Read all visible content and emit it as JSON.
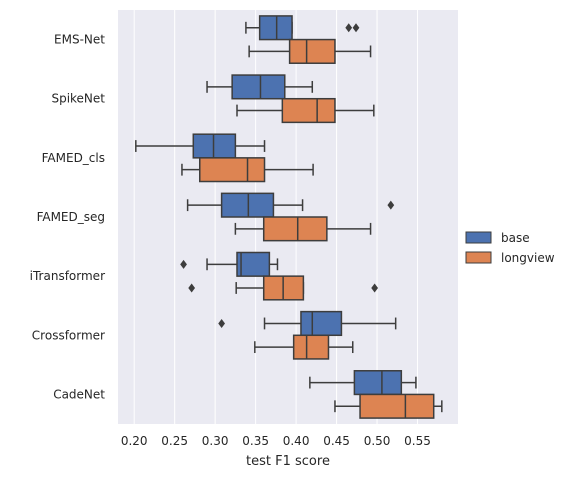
{
  "chart_data": {
    "type": "box",
    "orientation": "horizontal",
    "xlabel": "test F1 score",
    "ylabel": "",
    "xlim": [
      0.18,
      0.6
    ],
    "xticks": [
      "0.20",
      "0.25",
      "0.30",
      "0.35",
      "0.40",
      "0.45",
      "0.50",
      "0.55"
    ],
    "xtick_values": [
      0.2,
      0.25,
      0.3,
      0.35,
      0.4,
      0.45,
      0.5,
      0.55
    ],
    "grid": true,
    "legend_position": "right",
    "categories": [
      "EMS-Net",
      "SpikeNet",
      "FAMED_cls",
      "FAMED_seg",
      "iTransformer",
      "Crossformer",
      "CadeNet"
    ],
    "series": [
      {
        "name": "base",
        "color": "#4c72b0",
        "boxes": [
          {
            "whislo": 0.338,
            "q1": 0.355,
            "med": 0.376,
            "q3": 0.395,
            "whishi": 0.395,
            "fliers": [
              0.465,
              0.474
            ]
          },
          {
            "whislo": 0.29,
            "q1": 0.321,
            "med": 0.356,
            "q3": 0.386,
            "whishi": 0.42,
            "fliers": []
          },
          {
            "whislo": 0.202,
            "q1": 0.273,
            "med": 0.298,
            "q3": 0.325,
            "whishi": 0.361,
            "fliers": []
          },
          {
            "whislo": 0.266,
            "q1": 0.308,
            "med": 0.341,
            "q3": 0.372,
            "whishi": 0.408,
            "fliers": [
              0.517
            ]
          },
          {
            "whislo": 0.29,
            "q1": 0.327,
            "med": 0.332,
            "q3": 0.367,
            "whishi": 0.377,
            "fliers": [
              0.261
            ]
          },
          {
            "whislo": 0.361,
            "q1": 0.406,
            "med": 0.42,
            "q3": 0.456,
            "whishi": 0.523,
            "fliers": [
              0.308
            ]
          },
          {
            "whislo": 0.417,
            "q1": 0.472,
            "med": 0.506,
            "q3": 0.53,
            "whishi": 0.548,
            "fliers": []
          }
        ]
      },
      {
        "name": "longview",
        "color": "#dd8452",
        "boxes": [
          {
            "whislo": 0.342,
            "q1": 0.392,
            "med": 0.413,
            "q3": 0.448,
            "whishi": 0.492,
            "fliers": []
          },
          {
            "whislo": 0.327,
            "q1": 0.383,
            "med": 0.426,
            "q3": 0.448,
            "whishi": 0.496,
            "fliers": []
          },
          {
            "whislo": 0.259,
            "q1": 0.281,
            "med": 0.34,
            "q3": 0.361,
            "whishi": 0.421,
            "fliers": []
          },
          {
            "whislo": 0.325,
            "q1": 0.36,
            "med": 0.402,
            "q3": 0.438,
            "whishi": 0.492,
            "fliers": []
          },
          {
            "whislo": 0.326,
            "q1": 0.36,
            "med": 0.384,
            "q3": 0.409,
            "whishi": 0.409,
            "fliers": [
              0.271,
              0.497
            ]
          },
          {
            "whislo": 0.349,
            "q1": 0.397,
            "med": 0.413,
            "q3": 0.44,
            "whishi": 0.47,
            "fliers": []
          },
          {
            "whislo": 0.448,
            "q1": 0.479,
            "med": 0.535,
            "q3": 0.57,
            "whishi": 0.58,
            "fliers": []
          }
        ]
      }
    ]
  }
}
